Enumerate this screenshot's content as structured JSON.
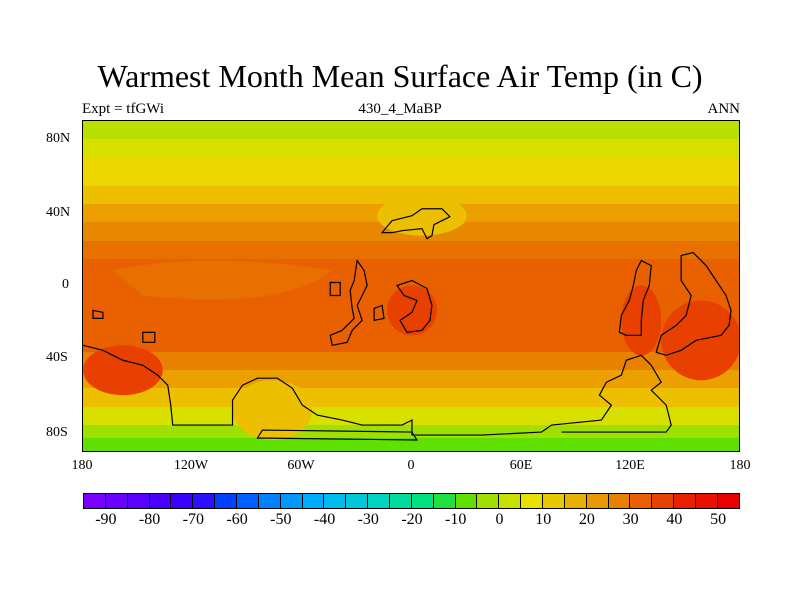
{
  "title": "Warmest Month Mean Surface Air Temp (in C)",
  "subtitle_left": "Expt = tfGWi",
  "subtitle_center": "430_4_MaBP",
  "subtitle_right": "ANN",
  "lat_ticks": [
    "80N",
    "40N",
    "0",
    "40S",
    "80S"
  ],
  "lon_ticks": [
    "180",
    "120W",
    "60W",
    "0",
    "60E",
    "120E",
    "180"
  ],
  "colorbar": {
    "colors": [
      "#7a00ff",
      "#6a00ff",
      "#5a00ff",
      "#4a00ff",
      "#3a00ff",
      "#2a10ff",
      "#0040ff",
      "#0060ff",
      "#0080ff",
      "#0098ff",
      "#00aaff",
      "#00bbee",
      "#00c8d8",
      "#00d4c0",
      "#00dca0",
      "#00e080",
      "#20e040",
      "#60e000",
      "#a0e000",
      "#c8e000",
      "#e8e000",
      "#e8c800",
      "#e8b000",
      "#e89800",
      "#e88000",
      "#e86000",
      "#e84000",
      "#e82000",
      "#e81000",
      "#e80000"
    ],
    "labels": [
      "-90",
      "-80",
      "-70",
      "-60",
      "-50",
      "-40",
      "-30",
      "-20",
      "-10",
      "0",
      "10",
      "20",
      "30",
      "40",
      "50"
    ]
  },
  "map_bands": [
    {
      "lat_from": 90,
      "lat_to": 80,
      "color": "#b8e000"
    },
    {
      "lat_from": 80,
      "lat_to": 70,
      "color": "#d8e000"
    },
    {
      "lat_from": 70,
      "lat_to": 55,
      "color": "#ecd800"
    },
    {
      "lat_from": 55,
      "lat_to": 45,
      "color": "#ecc000"
    },
    {
      "lat_from": 45,
      "lat_to": 35,
      "color": "#eca000"
    },
    {
      "lat_from": 35,
      "lat_to": 25,
      "color": "#e88800"
    },
    {
      "lat_from": 25,
      "lat_to": 15,
      "color": "#e87000"
    },
    {
      "lat_from": 15,
      "lat_to": -35,
      "color": "#e86000"
    },
    {
      "lat_from": -35,
      "lat_to": -45,
      "color": "#e88000"
    },
    {
      "lat_from": -45,
      "lat_to": -55,
      "color": "#eca000"
    },
    {
      "lat_from": -55,
      "lat_to": -65,
      "color": "#ecc000"
    },
    {
      "lat_from": -65,
      "lat_to": -75,
      "color": "#d8e000"
    },
    {
      "lat_from": -75,
      "lat_to": -82,
      "color": "#a0e000"
    },
    {
      "lat_from": -82,
      "lat_to": -90,
      "color": "#60e000"
    }
  ]
}
